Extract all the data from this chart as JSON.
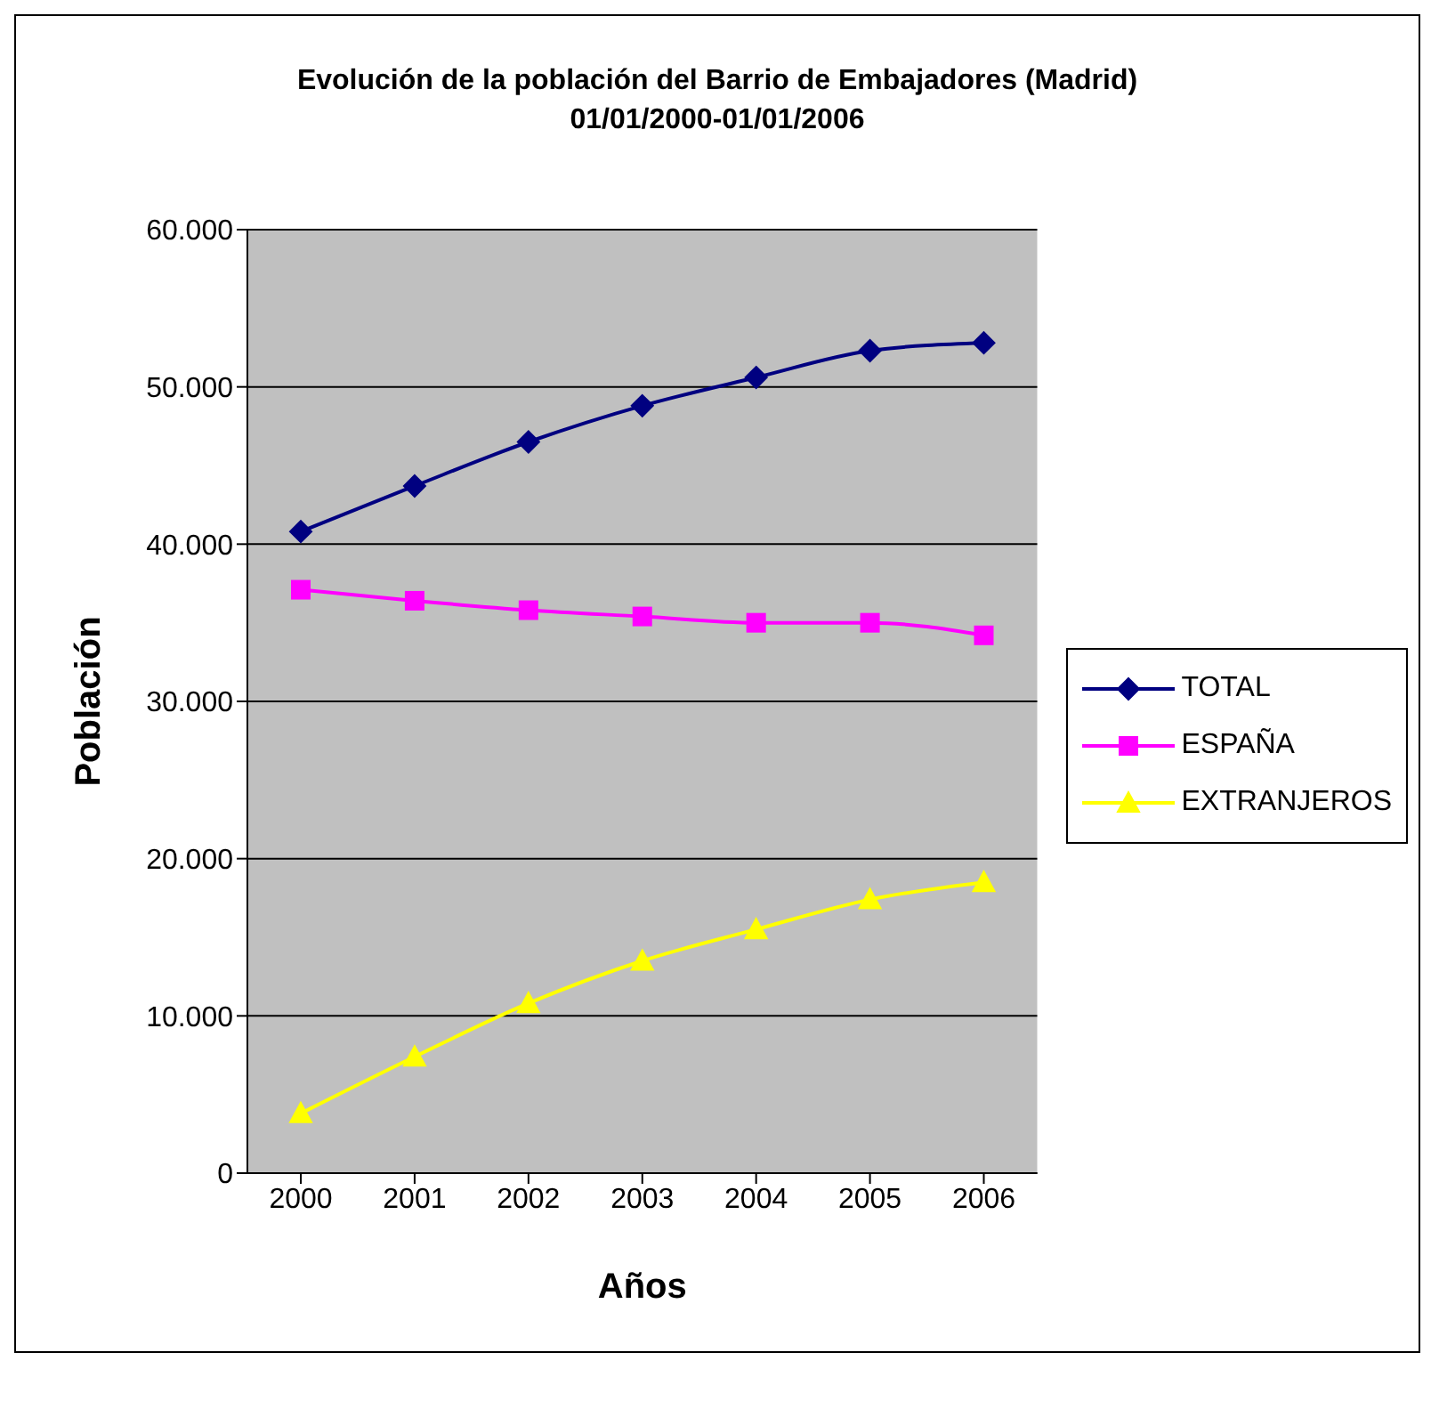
{
  "chart_data": {
    "type": "line",
    "title": "Evolución de la población del Barrio de Embajadores (Madrid)",
    "subtitle": "01/01/2000-01/01/2006",
    "xlabel": "Años",
    "ylabel": "Población",
    "categories": [
      "2000",
      "2001",
      "2002",
      "2003",
      "2004",
      "2005",
      "2006"
    ],
    "series": [
      {
        "name": "TOTAL",
        "color": "#000080",
        "marker": "diamond",
        "values": [
          40800,
          43700,
          46500,
          48800,
          50600,
          52300,
          52800
        ]
      },
      {
        "name": "ESPAÑA",
        "color": "#ff00ff",
        "marker": "square",
        "values": [
          37100,
          36400,
          35800,
          35400,
          35000,
          35000,
          34200
        ]
      },
      {
        "name": "EXTRANJEROS",
        "color": "#ffff00",
        "marker": "triangle",
        "values": [
          3800,
          7400,
          10800,
          13500,
          15500,
          17400,
          18500
        ]
      }
    ],
    "ylim": [
      0,
      60000
    ],
    "yticks": [
      {
        "value": 0,
        "label": "0"
      },
      {
        "value": 10000,
        "label": "10.000"
      },
      {
        "value": 20000,
        "label": "20.000"
      },
      {
        "value": 30000,
        "label": "30.000"
      },
      {
        "value": 40000,
        "label": "40.000"
      },
      {
        "value": 50000,
        "label": "50.000"
      },
      {
        "value": 60000,
        "label": "60.000"
      }
    ],
    "grid": "y",
    "legend": "right",
    "line_style": "solid"
  }
}
